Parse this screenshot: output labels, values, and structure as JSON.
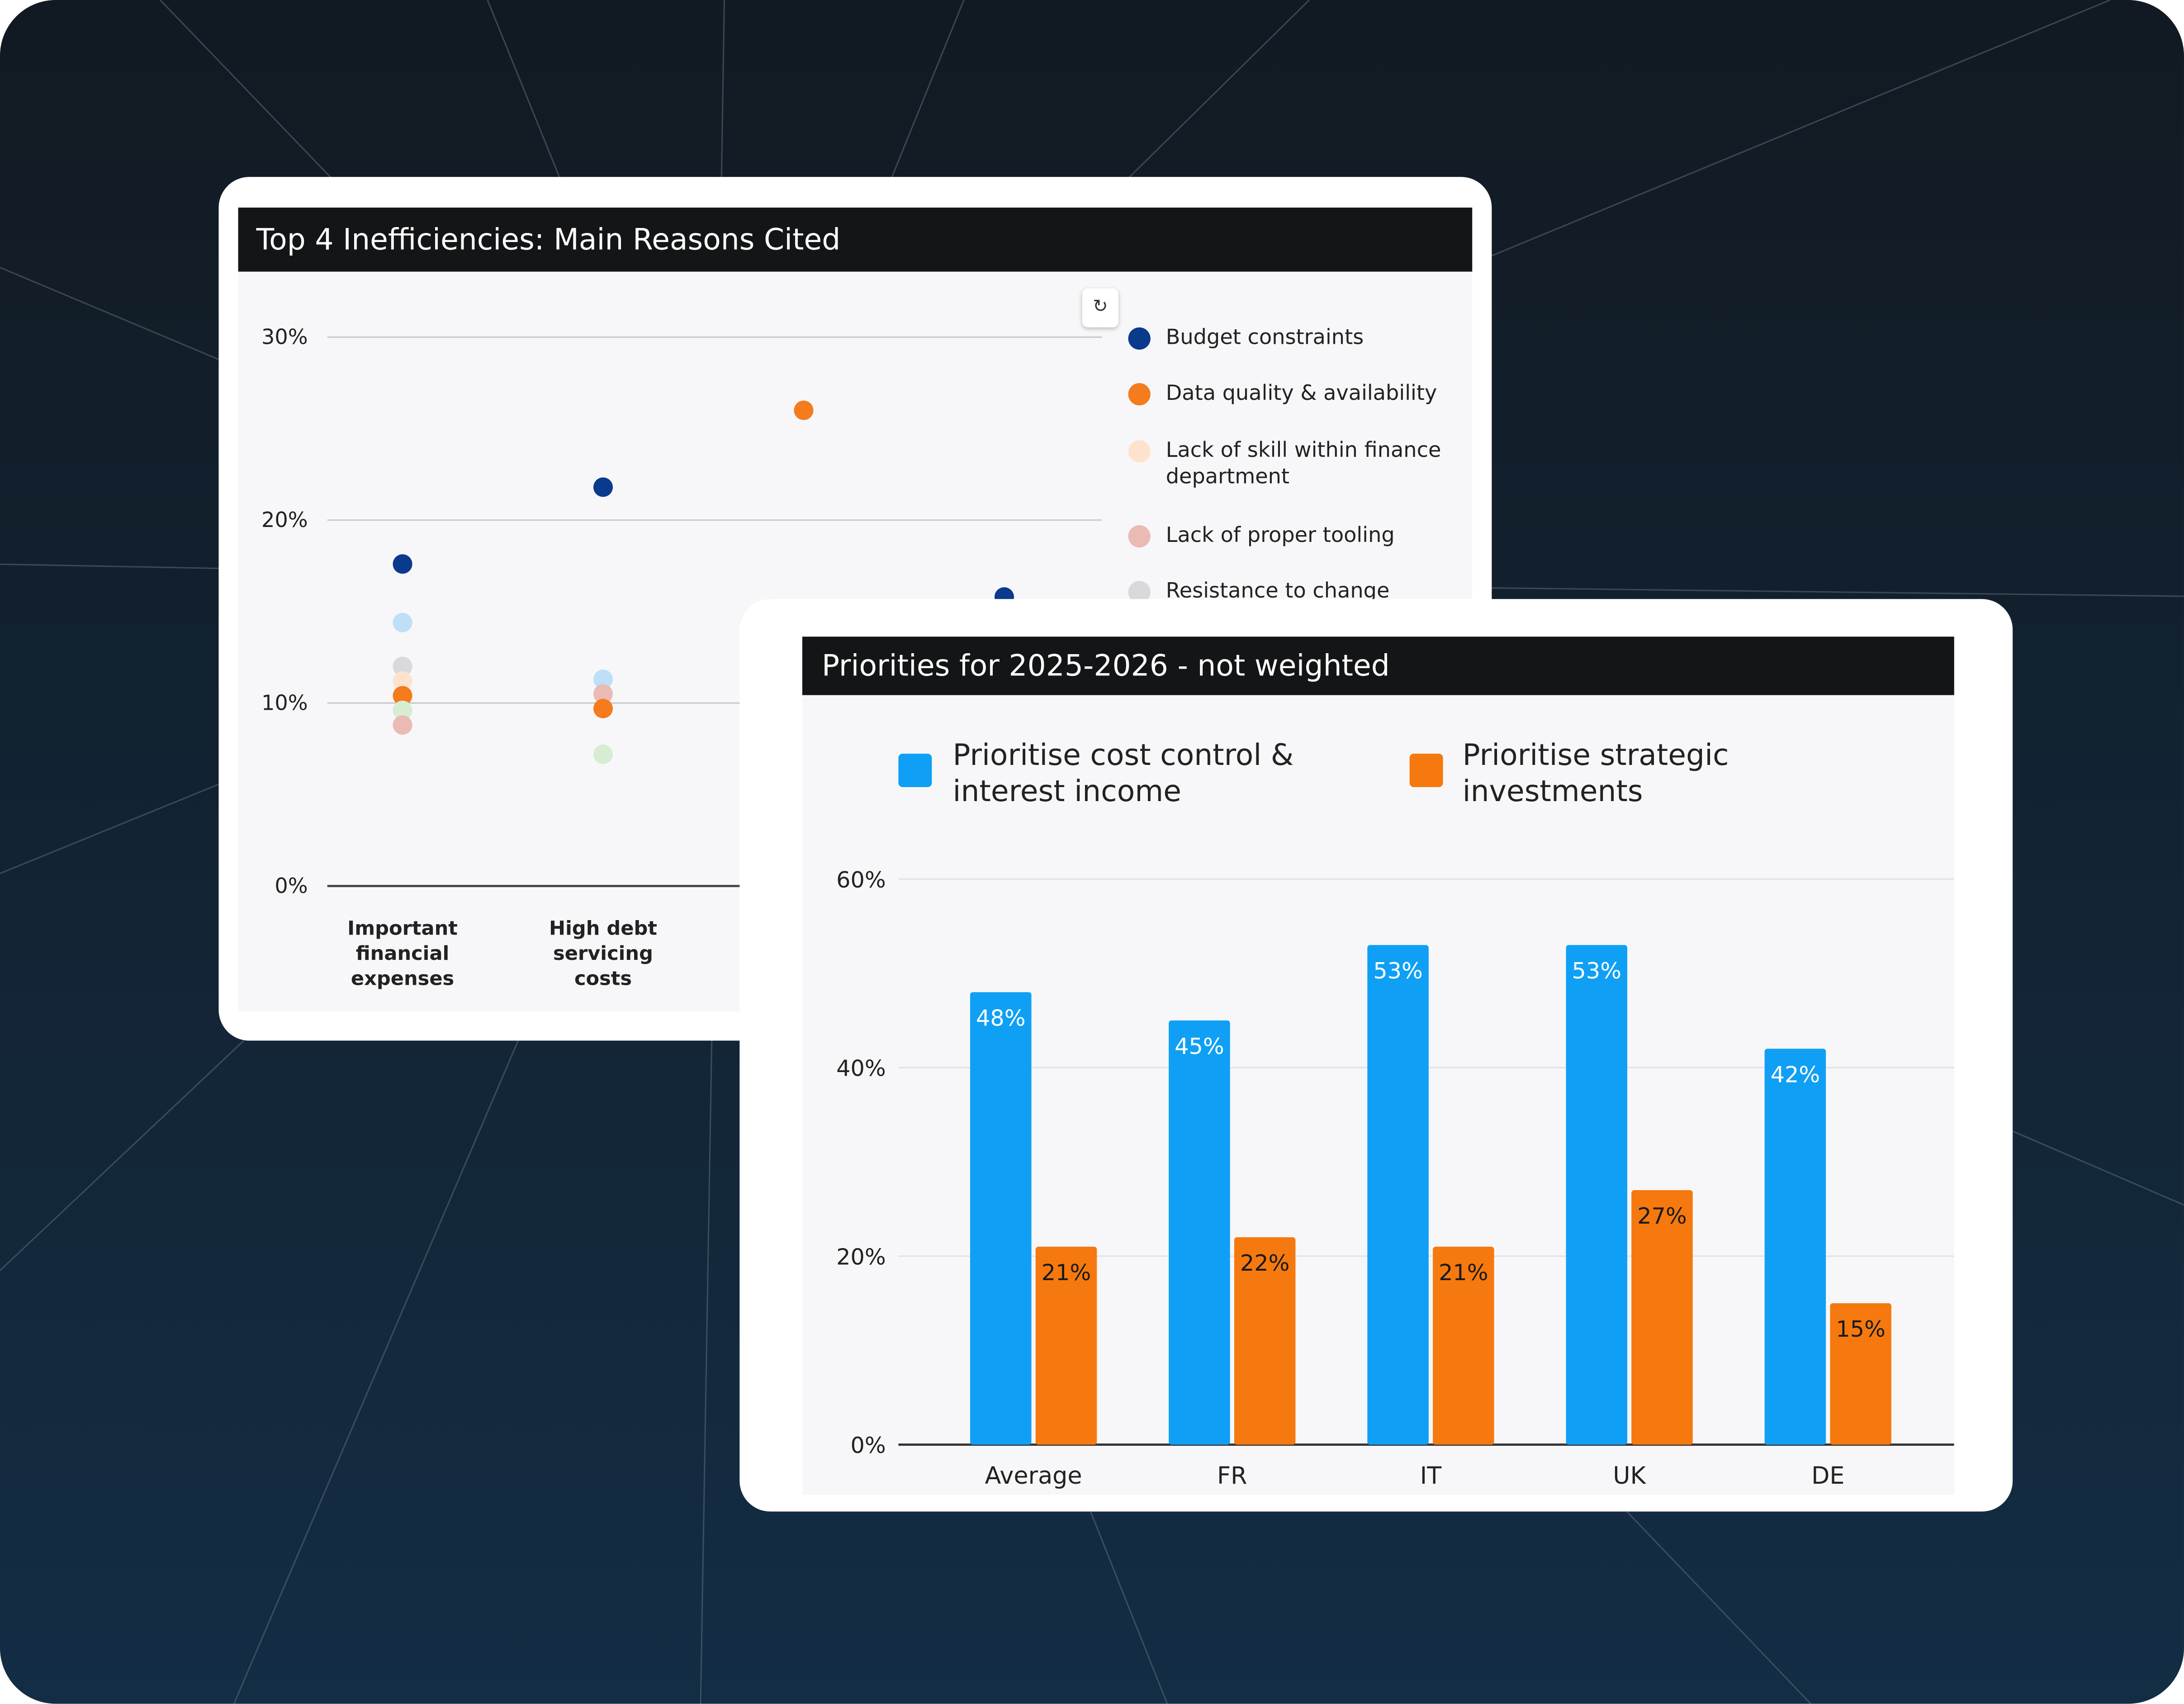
{
  "colors": {
    "budget": "#0a3a8c",
    "data_quality": "#f47c1c",
    "lack_skill": "#fde3cd",
    "tooling": "#eabbb4",
    "resistance": "#d9d9dc",
    "light_blue": "#bde0f7",
    "light_green": "#d7ecd3",
    "cost_control": "#0fa0f5",
    "strategic": "#f5790e"
  },
  "chart_data": [
    {
      "type": "scatter",
      "title": "Top 4 Inefficiencies: Main Reasons Cited",
      "y_ticks": [
        "30%",
        "20%",
        "10%",
        "0%"
      ],
      "ylim": [
        0,
        30
      ],
      "categories": [
        "Important financial expenses",
        "High debt servicing costs",
        "",
        ""
      ],
      "legend": [
        "Budget constraints",
        "Data quality & availability",
        "Lack of skill within finance department",
        "Lack of proper tooling",
        "Resistance to change"
      ],
      "points": [
        {
          "cat": 0,
          "y": 17.6,
          "color": "budget"
        },
        {
          "cat": 0,
          "y": 14.4,
          "color": "light_blue"
        },
        {
          "cat": 0,
          "y": 12.0,
          "color": "resistance"
        },
        {
          "cat": 0,
          "y": 11.2,
          "color": "lack_skill"
        },
        {
          "cat": 0,
          "y": 10.4,
          "color": "data_quality"
        },
        {
          "cat": 0,
          "y": 9.6,
          "color": "light_green"
        },
        {
          "cat": 0,
          "y": 8.8,
          "color": "tooling"
        },
        {
          "cat": 1,
          "y": 21.8,
          "color": "budget"
        },
        {
          "cat": 1,
          "y": 11.3,
          "color": "light_blue"
        },
        {
          "cat": 1,
          "y": 10.5,
          "color": "tooling"
        },
        {
          "cat": 1,
          "y": 9.7,
          "color": "data_quality"
        },
        {
          "cat": 1,
          "y": 7.2,
          "color": "light_green"
        },
        {
          "cat": 2,
          "y": 26.0,
          "color": "data_quality"
        },
        {
          "cat": 3,
          "y": 15.8,
          "color": "budget"
        }
      ]
    },
    {
      "type": "bar",
      "title": "Priorities for 2025-2026 - not weighted",
      "categories": [
        "Average",
        "FR",
        "IT",
        "UK",
        "DE"
      ],
      "y_ticks": [
        "60%",
        "40%",
        "20%",
        "0%"
      ],
      "ylim": [
        0,
        60
      ],
      "series": [
        {
          "name": "Prioritise cost control & interest income",
          "color": "cost_control",
          "values": [
            48,
            45,
            53,
            53,
            42
          ],
          "labels": [
            "48%",
            "45%",
            "53%",
            "53%",
            "42%"
          ]
        },
        {
          "name": "Prioritise strategic investments",
          "color": "strategic",
          "values": [
            21,
            22,
            21,
            27,
            15
          ],
          "labels": [
            "21%",
            "22%",
            "21%",
            "27%",
            "15%"
          ]
        }
      ]
    }
  ],
  "legend2": {
    "cost_line1": "Prioritise cost control &",
    "cost_line2": "interest income",
    "strategic_line1": "Prioritise strategic",
    "strategic_line2": "investments"
  }
}
